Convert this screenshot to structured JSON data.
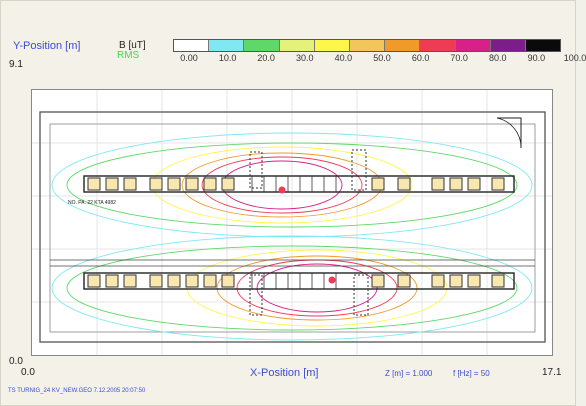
{
  "labels": {
    "y_axis": "Y-Position [m]",
    "b_unit": "B [uT]",
    "rms": "RMS",
    "y_max": "9.1",
    "y_min": "0.0",
    "x_min": "0.0",
    "x_max": "17.1",
    "x_axis": "X-Position [m]",
    "z_info": "Z [m] = 1.000",
    "f_info": "f [Hz] = 50",
    "footer": "TS TURNIG_24 KV_NEW.GEO  7.12.2005 20:07:50"
  },
  "legend": {
    "ticks": [
      "0.00",
      "10.0",
      "20.0",
      "30.0",
      "40.0",
      "50.0",
      "60.0",
      "70.0",
      "80.0",
      "90.0",
      "100.0"
    ],
    "colors": [
      "#ffffff",
      "#7fe8f2",
      "#5fd86a",
      "#e5f27a",
      "#fff64a",
      "#f2c65a",
      "#f09a2a",
      "#ef3b54",
      "#d8208a",
      "#7b1e8a",
      "#0a0a0a"
    ]
  },
  "plot_labels": {
    "top_ref": "NO. PA. 22 KTA 4982"
  },
  "colors": {
    "axis_label": "#3c4cd6",
    "rms": "#52cf52"
  }
}
